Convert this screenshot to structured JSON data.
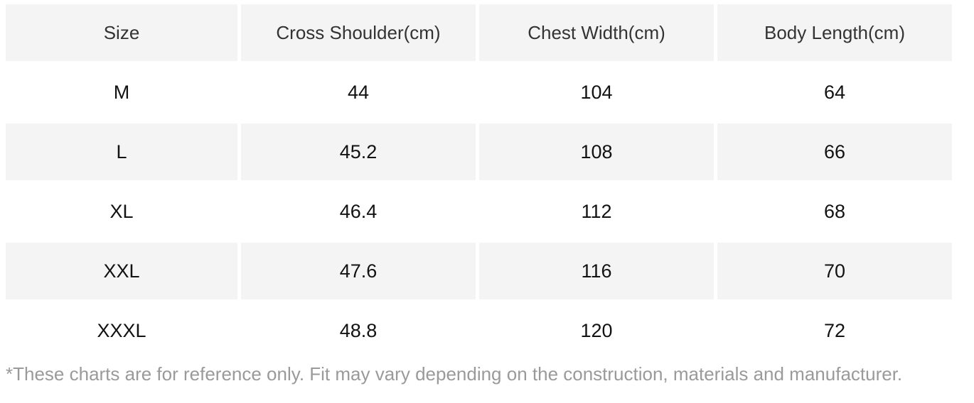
{
  "size_chart": {
    "columns": [
      {
        "label": "Size"
      },
      {
        "label": "Cross Shoulder(cm)"
      },
      {
        "label": "Chest Width(cm)"
      },
      {
        "label": "Body Length(cm)"
      }
    ],
    "rows": [
      {
        "cells": [
          "M",
          "44",
          "104",
          "64"
        ]
      },
      {
        "cells": [
          "L",
          "45.2",
          "108",
          "66"
        ]
      },
      {
        "cells": [
          "XL",
          "46.4",
          "112",
          "68"
        ]
      },
      {
        "cells": [
          "XXL",
          "47.6",
          "116",
          "70"
        ]
      },
      {
        "cells": [
          "XXXL",
          "48.8",
          "120",
          "72"
        ]
      }
    ],
    "footnote": "*These charts are for reference only. Fit may vary depending on the construction, materials and manufacturer."
  },
  "colors": {
    "row_shade_bg": "#f4f4f4",
    "header_text": "#333333",
    "cell_text": "#121212",
    "footnote_text": "#9a9a9a"
  }
}
